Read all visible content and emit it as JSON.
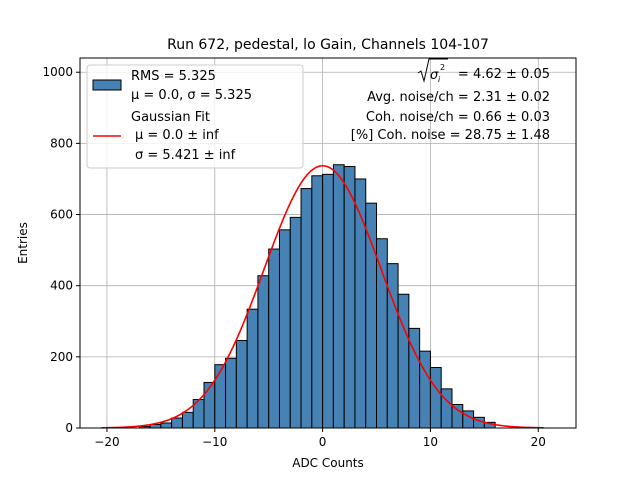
{
  "chart_data": {
    "type": "bar",
    "title": "Run 672, pedestal, lo Gain, Channels 104-107",
    "xlabel": "ADC Counts",
    "ylabel": "Entries",
    "xlim": [
      -22.5,
      23.5
    ],
    "ylim": [
      0,
      1040
    ],
    "xticks": [
      -20,
      -10,
      0,
      10,
      20
    ],
    "xtick_labels": [
      "−20",
      "−10",
      "0",
      "10",
      "20"
    ],
    "yticks": [
      0,
      200,
      400,
      600,
      800,
      1000
    ],
    "ytick_labels": [
      "0",
      "200",
      "400",
      "600",
      "800",
      "1000"
    ],
    "grid": true,
    "bin_edges": [
      -17,
      -16,
      -15,
      -14,
      -13,
      -12,
      -11,
      -10,
      -9,
      -8,
      -7,
      -6,
      -5,
      -4,
      -3,
      -2,
      -1,
      0,
      1,
      2,
      3,
      4,
      5,
      6,
      7,
      8,
      9,
      10,
      11,
      12,
      13,
      14,
      15,
      16
    ],
    "series": [
      {
        "kind": "histogram",
        "color": "#4682b4",
        "edgecolor": "#000000",
        "values": [
          4,
          10,
          14,
          28,
          44,
          80,
          128,
          178,
          196,
          246,
          334,
          428,
          503,
          557,
          592,
          673,
          709,
          713,
          740,
          735,
          700,
          632,
          532,
          462,
          376,
          280,
          216,
          170,
          110,
          66,
          48,
          30,
          16
        ]
      },
      {
        "kind": "line",
        "color": "#ff0000",
        "mu": 0.0,
        "sigma": 5.421,
        "amplitude": 737,
        "x_range": [
          -20.5,
          20.5
        ]
      }
    ],
    "legend": {
      "placement": "top-left",
      "hist_line1": "RMS = 5.325",
      "hist_line2": "μ = 0.0, σ = 5.325",
      "fit_title": "Gaussian Fit",
      "fit_line1": "μ = 0.0 ± inf",
      "fit_line2": "σ = 5.421 ± inf"
    },
    "annotations": {
      "placement": "top-right",
      "sigma_value": " = 4.62 ± 0.05",
      "avg_noise": "Avg. noise/ch = 2.31 ± 0.02",
      "coh_noise": "Coh. noise/ch = 0.66 ± 0.03",
      "coh_pct": "[%] Coh. noise = 28.75 ± 1.48"
    }
  }
}
